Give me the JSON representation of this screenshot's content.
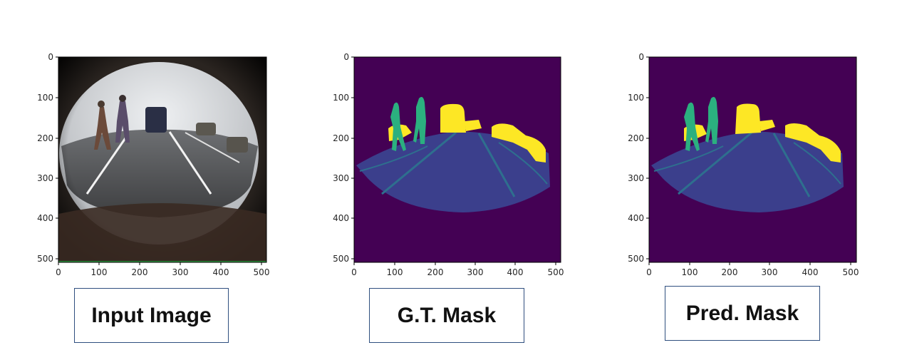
{
  "panels": [
    {
      "caption": "Input Image",
      "x_ticks": [
        "0",
        "100",
        "200",
        "300",
        "400",
        "500"
      ],
      "y_ticks": [
        "0",
        "100",
        "200",
        "300",
        "400",
        "500"
      ],
      "kind": "fisheye-photo"
    },
    {
      "caption": "G.T. Mask",
      "x_ticks": [
        "0",
        "100",
        "200",
        "300",
        "400",
        "500"
      ],
      "y_ticks": [
        "0",
        "100",
        "200",
        "300",
        "400",
        "500"
      ],
      "kind": "segmentation-mask"
    },
    {
      "caption": "Pred. Mask",
      "x_ticks": [
        "0",
        "100",
        "200",
        "300",
        "400",
        "500"
      ],
      "y_ticks": [
        "0",
        "100",
        "200",
        "300",
        "400",
        "500"
      ],
      "kind": "segmentation-mask"
    }
  ],
  "colors": {
    "background_class": "#440154",
    "road_class": "#3b3f8c",
    "lane_class": "#2e6f8e",
    "person_class": "#2bb07f",
    "vehicle_class": "#fde725",
    "caption_border": "#2f4f7f"
  }
}
